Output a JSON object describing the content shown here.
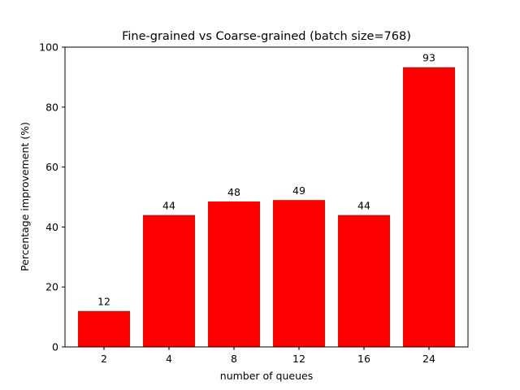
{
  "chart_data": {
    "type": "bar",
    "title": "Fine-grained vs Coarse-grained (batch size=768)",
    "xlabel": "number of queues",
    "ylabel": "Percentage improvement (%)",
    "categories": [
      "2",
      "4",
      "8",
      "12",
      "16",
      "24"
    ],
    "values": [
      12,
      44,
      48.5,
      49,
      44,
      93.3
    ],
    "value_labels": [
      "12",
      "44",
      "48",
      "49",
      "44",
      "93"
    ],
    "ylim": [
      0,
      100
    ],
    "yticks": [
      0,
      20,
      40,
      60,
      80,
      100
    ],
    "bar_color": "#ff0000",
    "grid": false,
    "legend": "none"
  }
}
